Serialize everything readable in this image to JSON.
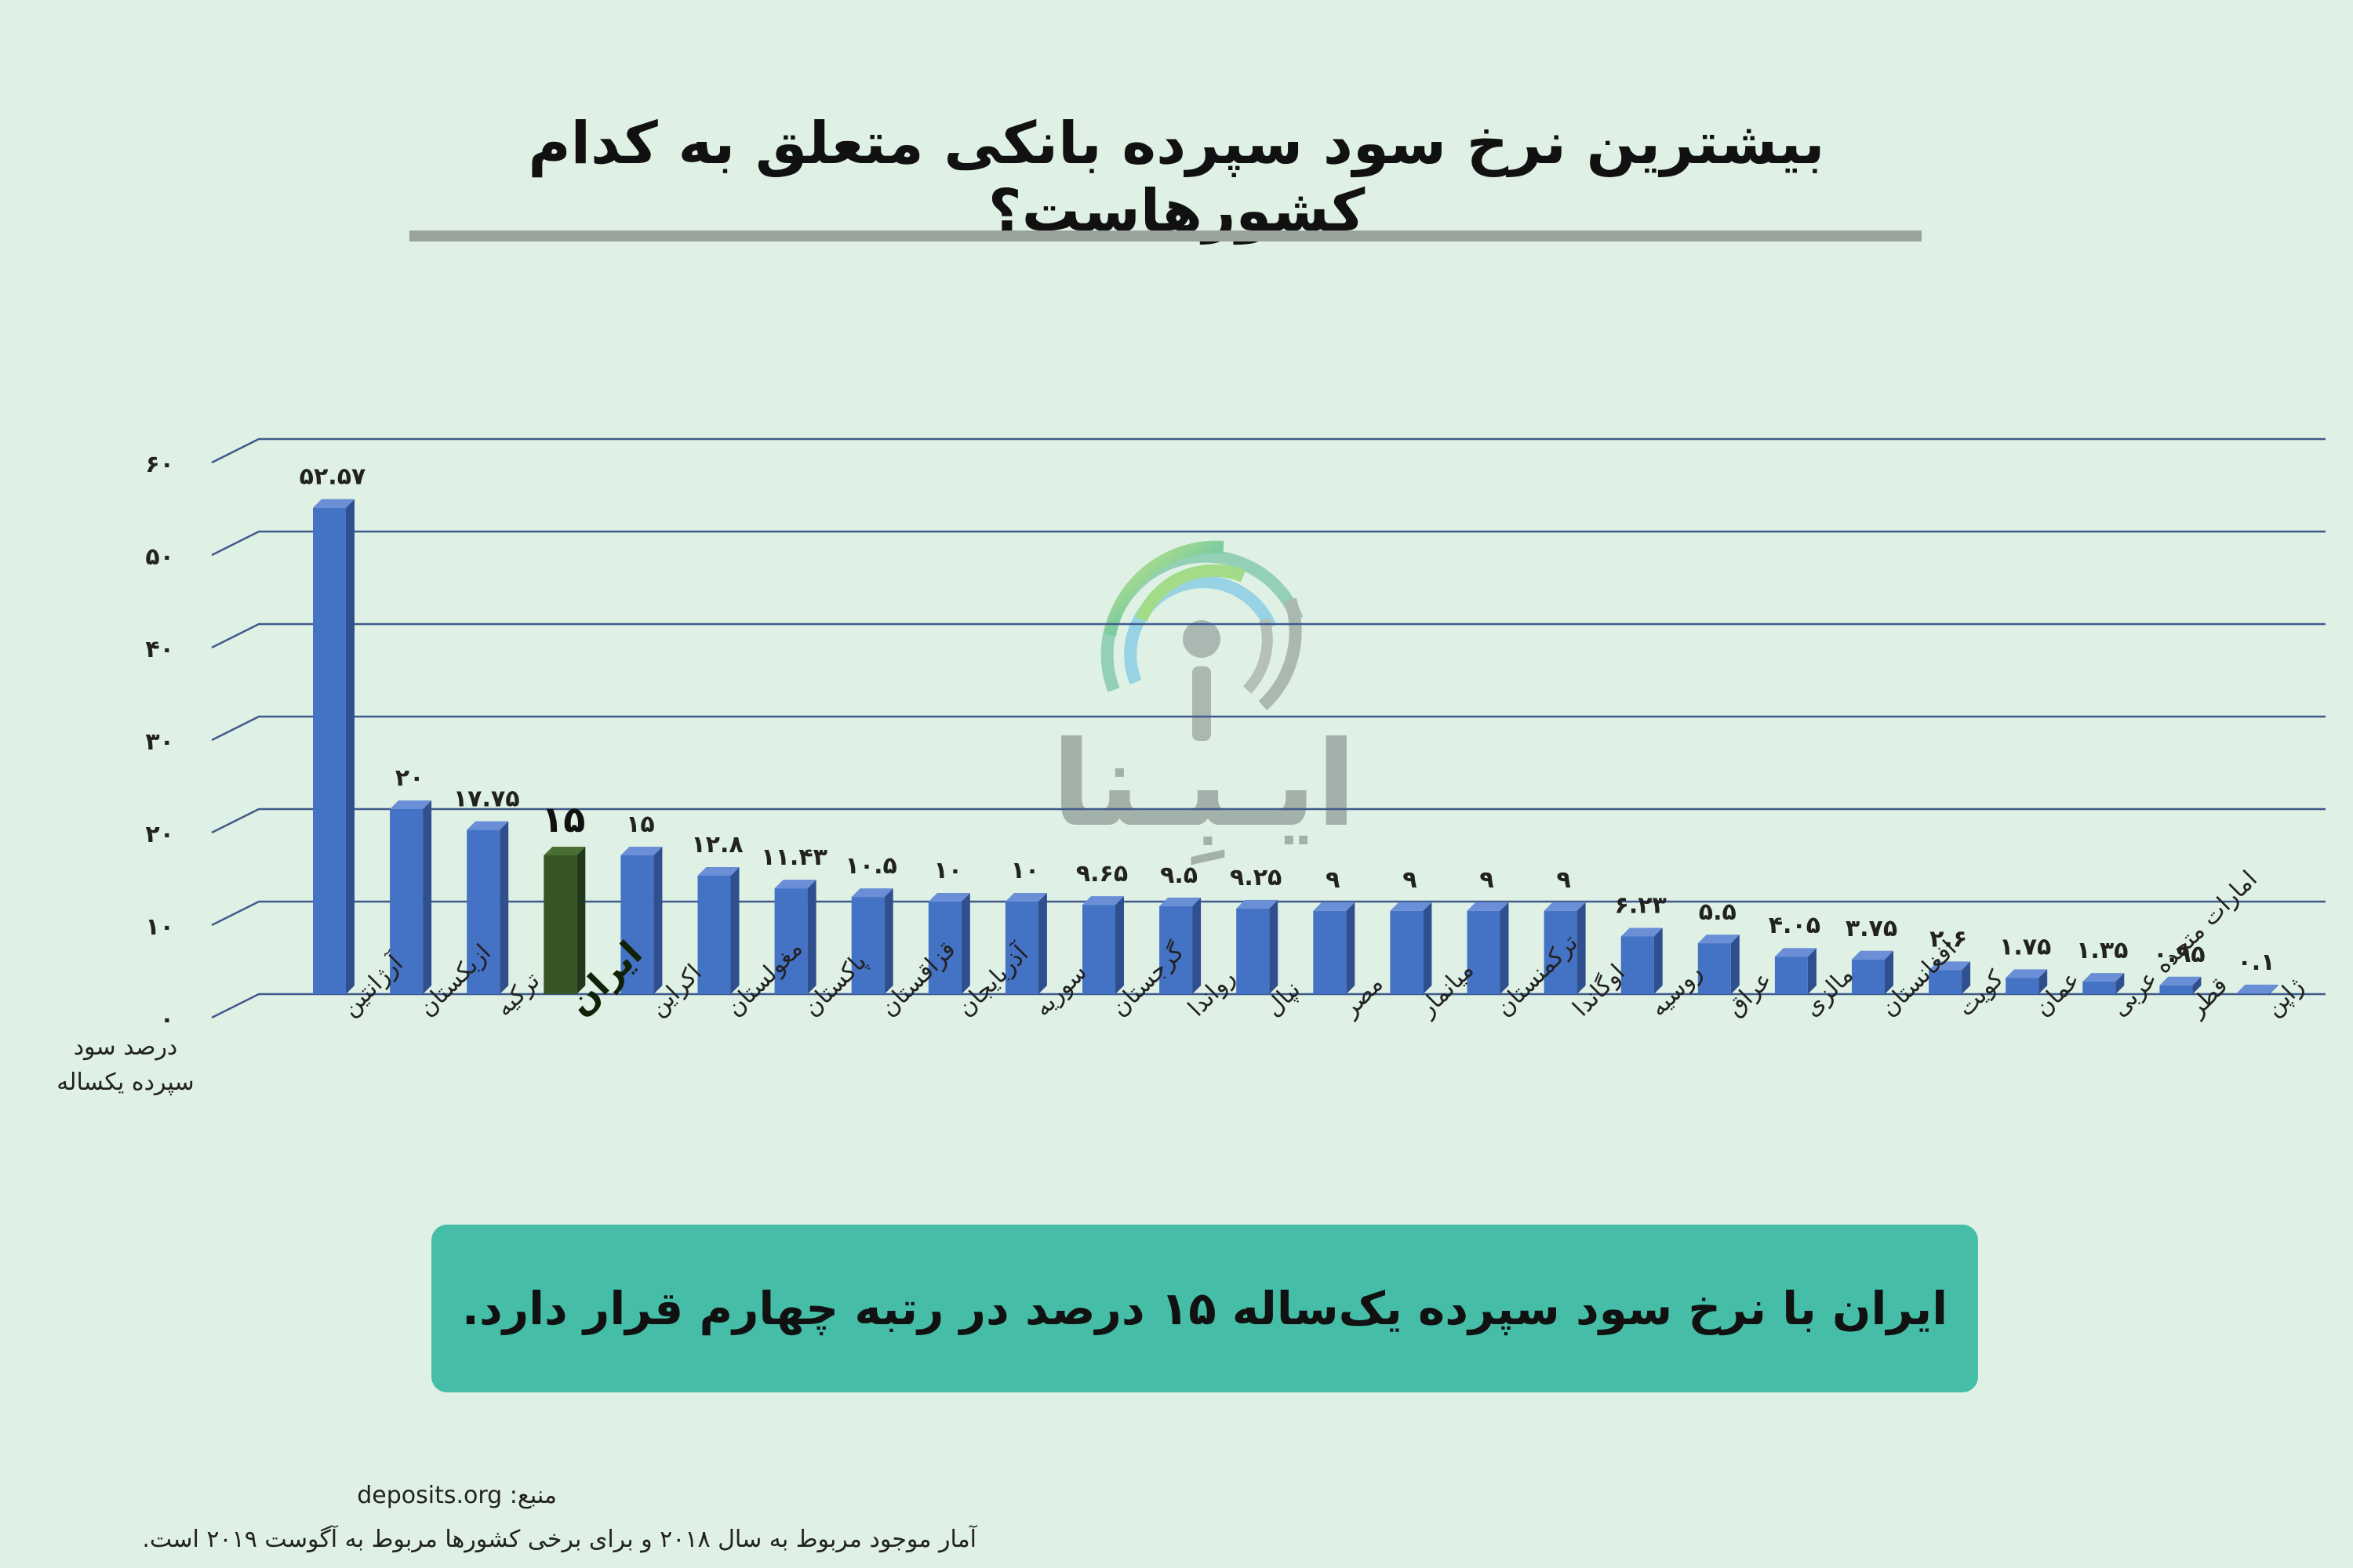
{
  "title": "بیشترین نرخ سود سپرده بانکی متعلق به کدام کشورهاست؟",
  "callout": "ایران با نرخ سود سپرده یک‌ساله ۱۵ درصد در رتبه چهارم قرار دارد.",
  "source": "منبع: deposits.org",
  "note": "آمار موجود مربوط به سال ۲۰۱۸ و برای برخی کشورها مربوط به آگوست ۲۰۱۹ است.",
  "watermark": {
    "text": "ایـبِـنا",
    "icon": "signal-broadcast-icon"
  },
  "colors": {
    "bar": "#4472c4",
    "bar_highlight": "#375623",
    "grid": "#3f5a8c",
    "callout": "#45bda7",
    "background": "#dff0e4"
  },
  "chart_data": {
    "type": "bar",
    "ylabel": "درصد سود سپرده یکساله",
    "ylim": [
      0,
      60
    ],
    "ytick_values": [
      0,
      10,
      20,
      30,
      40,
      50,
      60
    ],
    "ytick_labels": [
      "۰",
      "۱۰",
      "۲۰",
      "۳۰",
      "۴۰",
      "۵۰",
      "۶۰"
    ],
    "grid": true,
    "categories": [
      "آرژانتین",
      "ازبکستان",
      "ترکیه",
      "ایران",
      "اکراین",
      "مغولستان",
      "پاکستان",
      "قزاقستان",
      "آذربایجان",
      "سوریه",
      "گرجستان",
      "رواندا",
      "نپال",
      "مصر",
      "میانمار",
      "ترکمنستان",
      "اوگاندا",
      "روسیه",
      "عراق",
      "مالزی",
      "افغانستان",
      "کویت",
      "عمان",
      "امارات متحده عربی",
      "قطر",
      "ژاپن"
    ],
    "values": [
      52.57,
      20,
      17.75,
      15,
      15,
      12.8,
      11.43,
      10.5,
      10,
      10,
      9.65,
      9.5,
      9.25,
      9,
      9,
      9,
      9,
      6.23,
      5.5,
      4.05,
      3.75,
      2.6,
      1.75,
      1.35,
      0.95,
      0.1
    ],
    "value_labels": [
      "۵۲.۵۷",
      "۲۰",
      "۱۷.۷۵",
      "۱۵",
      "۱۵",
      "۱۲.۸",
      "۱۱.۴۳",
      "۱۰.۵",
      "۱۰",
      "۱۰",
      "۹.۶۵",
      "۹.۵",
      "۹.۲۵",
      "۹",
      "۹",
      "۹",
      "۹",
      "۶.۲۳",
      "۵.۵",
      "۴.۰۵",
      "۳.۷۵",
      "۲.۶",
      "۱.۷۵",
      "۱.۳۵",
      "۰.۹۵",
      "۰.۱"
    ],
    "highlight": "ایران"
  }
}
